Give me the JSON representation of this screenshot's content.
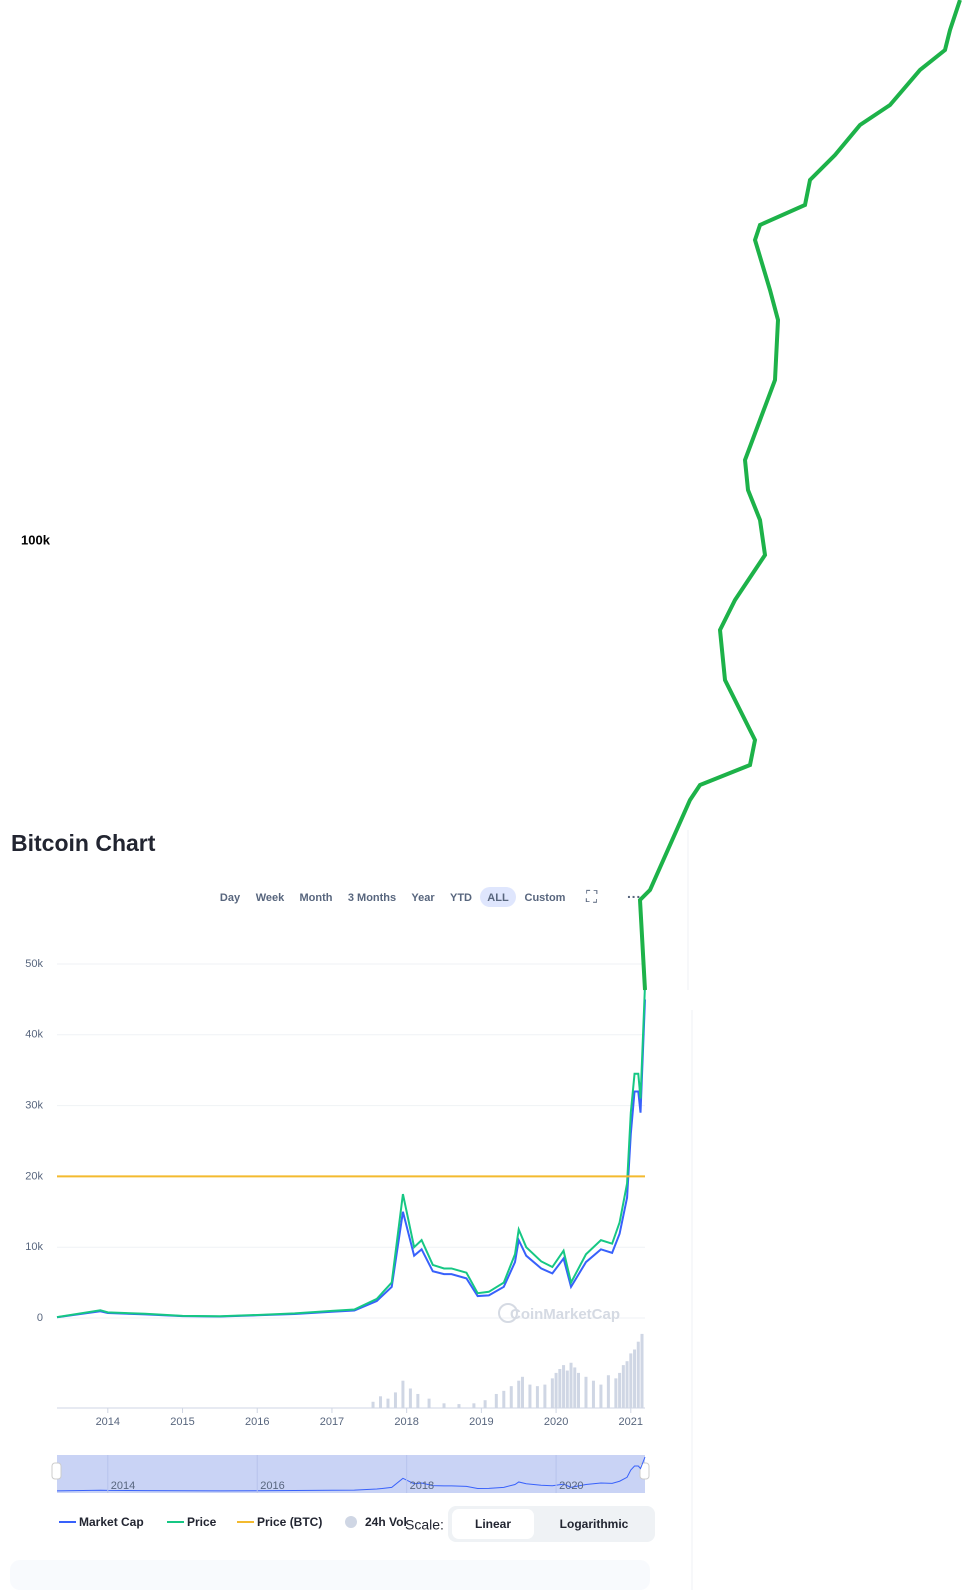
{
  "header": {
    "title": "Bitcoin Chart"
  },
  "toolbar": {
    "ranges": [
      "Day",
      "Week",
      "Month",
      "3 Months",
      "Year",
      "YTD",
      "ALL",
      "Custom"
    ],
    "active": "ALL"
  },
  "watermark": "CoinMarketCap",
  "overflow_label": "100k",
  "scale": {
    "label": "Scale:",
    "options": [
      "Linear",
      "Logarithmic"
    ],
    "active": "Linear"
  },
  "navigator": {
    "xticks": [
      2014,
      2016,
      2018,
      2020
    ]
  },
  "chart_data": {
    "type": "line",
    "xlim": [
      2013.32,
      2021.19
    ],
    "xticks": [
      2014,
      2015,
      2016,
      2017,
      2018,
      2019,
      2020,
      2021
    ],
    "ylim": [
      0,
      50000
    ],
    "yticks": [
      0,
      {
        "value": 10000,
        "label": "10k"
      },
      {
        "value": 20000,
        "label": "20k"
      },
      {
        "value": 30000,
        "label": "30k"
      },
      {
        "value": 40000,
        "label": "40k"
      },
      {
        "value": 50000,
        "label": "50k"
      }
    ],
    "y2lim": [
      0,
      100
    ],
    "grid": true,
    "x": [
      2013.32,
      2013.9,
      2014.0,
      2014.5,
      2015.0,
      2015.5,
      2016.0,
      2016.5,
      2017.0,
      2017.3,
      2017.6,
      2017.8,
      2017.95,
      2018.1,
      2018.2,
      2018.35,
      2018.5,
      2018.6,
      2018.8,
      2018.95,
      2019.1,
      2019.3,
      2019.45,
      2019.5,
      2019.6,
      2019.8,
      2019.95,
      2020.1,
      2020.2,
      2020.4,
      2020.6,
      2020.75,
      2020.85,
      2020.95,
      2021.0,
      2021.05,
      2021.1,
      2021.13,
      2021.19
    ],
    "series": [
      {
        "name": "Market Cap",
        "color": "#3861fb",
        "values": [
          100,
          950,
          700,
          520,
          260,
          220,
          380,
          570,
          880,
          1050,
          2400,
          4400,
          15000,
          8800,
          9700,
          6600,
          6200,
          6200,
          5600,
          3100,
          3200,
          4400,
          7900,
          11000,
          8800,
          7000,
          6300,
          8400,
          4400,
          7900,
          9700,
          9200,
          11900,
          17000,
          26000,
          32000,
          32000,
          29000,
          45000
        ]
      },
      {
        "name": "Price",
        "color": "#16c784",
        "values": [
          120,
          1100,
          800,
          600,
          300,
          250,
          430,
          650,
          1000,
          1200,
          2700,
          5000,
          17500,
          10000,
          11000,
          7500,
          7000,
          7000,
          6400,
          3500,
          3700,
          5000,
          9000,
          12500,
          10000,
          8000,
          7200,
          9500,
          5000,
          9000,
          11000,
          10500,
          13500,
          19000,
          29000,
          34500,
          34500,
          31000,
          47000
        ]
      },
      {
        "name": "Price (BTC)",
        "color": "#f3ba2f",
        "x": [
          2013.32,
          2021.19
        ],
        "values": [
          20000,
          20000
        ]
      },
      {
        "name": "24h Vol",
        "color": "#cfd6e4",
        "type": "bar",
        "axis": "y2",
        "x": [
          2017.55,
          2017.65,
          2017.75,
          2017.85,
          2017.95,
          2018.05,
          2018.15,
          2018.3,
          2018.5,
          2018.7,
          2018.9,
          2019.05,
          2019.2,
          2019.3,
          2019.4,
          2019.5,
          2019.55,
          2019.65,
          2019.75,
          2019.85,
          2019.95,
          2020.0,
          2020.05,
          2020.1,
          2020.15,
          2020.2,
          2020.25,
          2020.3,
          2020.4,
          2020.5,
          2020.6,
          2020.7,
          2020.8,
          2020.85,
          2020.9,
          2020.95,
          2021.0,
          2021.05,
          2021.1,
          2021.15
        ],
        "values": [
          8,
          15,
          12,
          20,
          35,
          25,
          18,
          12,
          6,
          5,
          6,
          10,
          18,
          22,
          28,
          35,
          40,
          30,
          28,
          30,
          38,
          45,
          50,
          55,
          48,
          58,
          52,
          45,
          40,
          35,
          30,
          42,
          38,
          45,
          55,
          60,
          70,
          75,
          85,
          95
        ]
      }
    ]
  }
}
